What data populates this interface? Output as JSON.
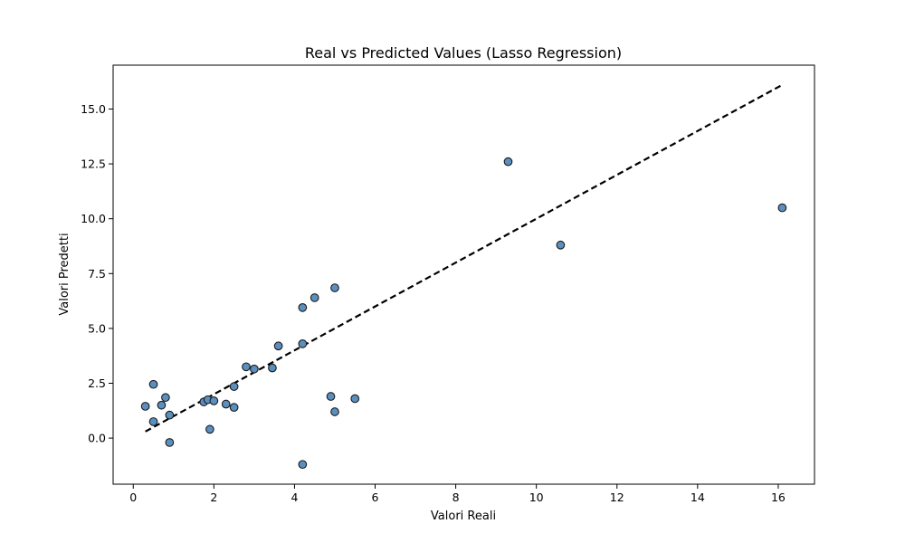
{
  "chart_data": {
    "type": "scatter",
    "title": "Real vs Predicted Values (Lasso Regression)",
    "xlabel": "Valori Reali",
    "ylabel": "Valori Predetti",
    "xlim": [
      -0.5,
      16.9
    ],
    "ylim": [
      -2.1,
      17.0
    ],
    "xticks": [
      0,
      2,
      4,
      6,
      8,
      10,
      12,
      14,
      16
    ],
    "xtick_labels": [
      "0",
      "2",
      "4",
      "6",
      "8",
      "10",
      "12",
      "14",
      "16"
    ],
    "yticks": [
      0.0,
      2.5,
      5.0,
      7.5,
      10.0,
      12.5,
      15.0
    ],
    "ytick_labels": [
      "0.0",
      "2.5",
      "5.0",
      "7.5",
      "10.0",
      "12.5",
      "15.0"
    ],
    "grid": false,
    "legend": "none",
    "marker_color": "#5b8fbf",
    "marker_edge_color": "#1a1a1a",
    "line_color": "#000000",
    "reference_line": {
      "style": "dashed",
      "x": [
        0.3,
        16.1
      ],
      "y": [
        0.3,
        16.1
      ]
    },
    "points": [
      {
        "x": 0.3,
        "y": 1.45
      },
      {
        "x": 0.5,
        "y": 2.45
      },
      {
        "x": 0.5,
        "y": 0.75
      },
      {
        "x": 0.7,
        "y": 1.5
      },
      {
        "x": 0.8,
        "y": 1.85
      },
      {
        "x": 0.9,
        "y": 1.05
      },
      {
        "x": 0.9,
        "y": -0.2
      },
      {
        "x": 1.75,
        "y": 1.65
      },
      {
        "x": 1.85,
        "y": 1.75
      },
      {
        "x": 1.9,
        "y": 0.4
      },
      {
        "x": 2.0,
        "y": 1.7
      },
      {
        "x": 2.3,
        "y": 1.55
      },
      {
        "x": 2.5,
        "y": 2.35
      },
      {
        "x": 2.5,
        "y": 1.4
      },
      {
        "x": 2.8,
        "y": 3.25
      },
      {
        "x": 3.0,
        "y": 3.15
      },
      {
        "x": 3.45,
        "y": 3.2
      },
      {
        "x": 3.6,
        "y": 4.2
      },
      {
        "x": 4.2,
        "y": 4.3
      },
      {
        "x": 4.2,
        "y": 5.95
      },
      {
        "x": 4.2,
        "y": -1.2
      },
      {
        "x": 4.5,
        "y": 6.4
      },
      {
        "x": 4.9,
        "y": 1.9
      },
      {
        "x": 5.0,
        "y": 6.85
      },
      {
        "x": 5.0,
        "y": 1.2
      },
      {
        "x": 5.5,
        "y": 1.8
      },
      {
        "x": 9.3,
        "y": 12.6
      },
      {
        "x": 10.6,
        "y": 8.8
      },
      {
        "x": 16.1,
        "y": 10.5
      }
    ]
  }
}
